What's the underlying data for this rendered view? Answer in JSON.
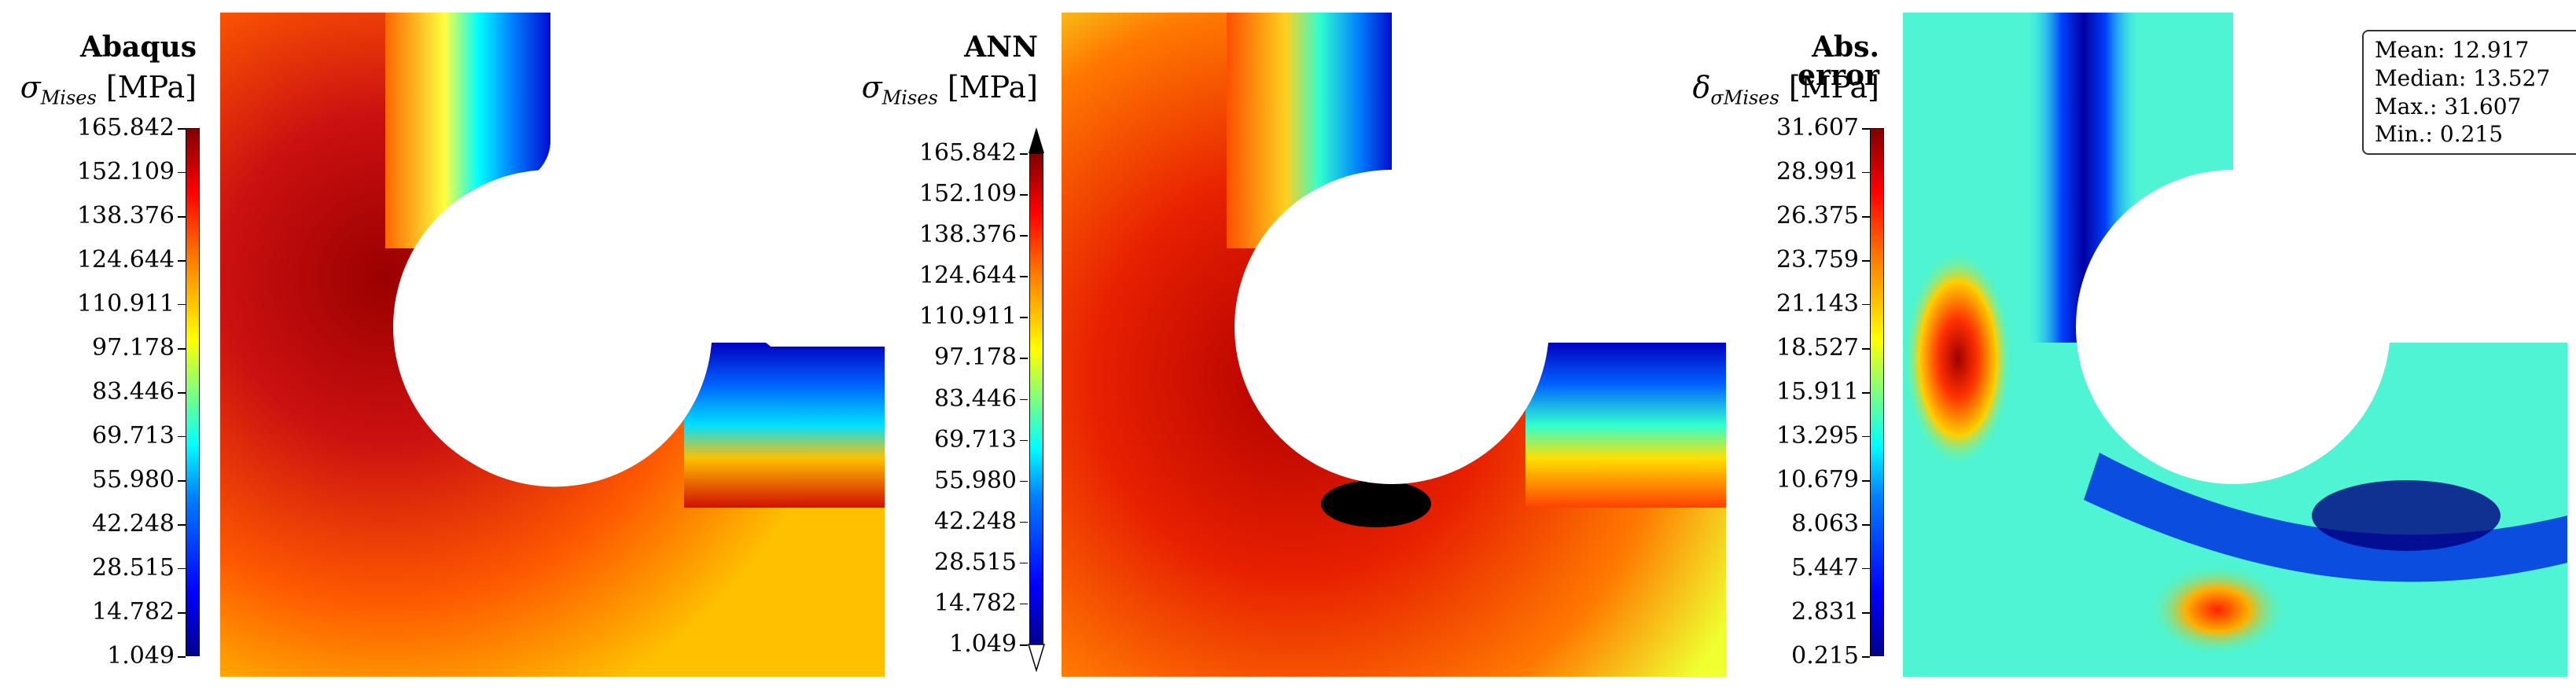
{
  "panels": [
    {
      "title": "Abaqus",
      "subtitle_symbol": "σ",
      "subtitle_sub": "Mises",
      "subtitle_unit": "[MPa]",
      "ticks": [
        "165.842",
        "152.109",
        "138.376",
        "124.644",
        "110.911",
        "97.178",
        "83.446",
        "69.713",
        "55.980",
        "42.248",
        "28.515",
        "14.782",
        "1.049"
      ]
    },
    {
      "title": "ANN",
      "subtitle_symbol": "σ",
      "subtitle_sub": "Mises",
      "subtitle_unit": "[MPa]",
      "ticks": [
        "165.842",
        "152.109",
        "138.376",
        "124.644",
        "110.911",
        "97.178",
        "83.446",
        "69.713",
        "55.980",
        "42.248",
        "28.515",
        "14.782",
        "1.049"
      ]
    },
    {
      "title": "Abs. error",
      "subtitle_symbol": "δ",
      "subtitle_sub": "σMises",
      "subtitle_unit": "[MPa]",
      "ticks": [
        "31.607",
        "28.991",
        "26.375",
        "23.759",
        "21.143",
        "18.527",
        "15.911",
        "13.295",
        "10.679",
        "8.063",
        "5.447",
        "2.831",
        "0.215"
      ]
    }
  ],
  "stats": {
    "mean": "Mean: 12.917",
    "median": "Median: 13.527",
    "max": "Max.: 31.607",
    "min": "Min.: 0.215"
  },
  "colors": {
    "colormap": [
      "#00008f",
      "#0000ff",
      "#007fff",
      "#00ffff",
      "#7fff7f",
      "#ffff00",
      "#ff7f00",
      "#ff0000",
      "#800000"
    ],
    "overflow": "#000000"
  }
}
